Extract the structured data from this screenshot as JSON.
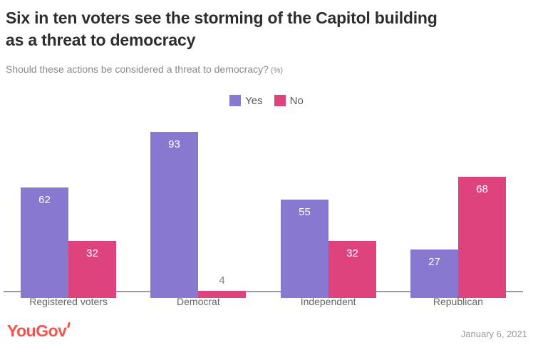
{
  "header": {
    "title_line1": "Six in ten voters see the storming of the Capitol building",
    "title_line2": "as a threat to democracy",
    "subtitle": "Should these actions be considered a threat to democracy?",
    "subtitle_suffix": "(%)"
  },
  "chart_data": {
    "type": "bar",
    "categories": [
      "Registered voters",
      "Democrat",
      "Independent",
      "Republican"
    ],
    "series": [
      {
        "name": "Yes",
        "color": "#8878D0",
        "values": [
          62,
          93,
          55,
          27
        ]
      },
      {
        "name": "No",
        "color": "#DE437D",
        "values": [
          32,
          4,
          32,
          68
        ]
      }
    ],
    "ylim": [
      0,
      100
    ],
    "grid": false,
    "value_labels": true,
    "legend_position": "top-center",
    "axis_color": "#9a9a9a",
    "value_label_color_inside": "#ffffff",
    "value_label_color_outside": "#808080",
    "category_label_color": "#666666"
  },
  "footer": {
    "logo_text": "YouGov",
    "logo_color": "#F4544C",
    "date": "January 6, 2021"
  }
}
